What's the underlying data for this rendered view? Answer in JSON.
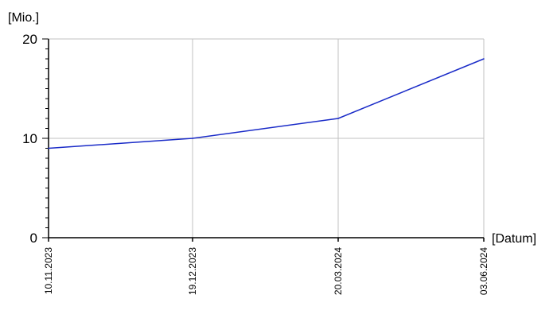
{
  "chart_data": {
    "type": "line",
    "xlabel": "[Datum]",
    "ylabel": "[Mio.]",
    "ylim": [
      0,
      20
    ],
    "y_ticks": [
      0,
      10,
      20
    ],
    "x_tick_labels": [
      "10.11.2023",
      "19.12.2023",
      "20.03.2024",
      "03.06.2024"
    ],
    "grid": true,
    "legend": "none",
    "series": [
      {
        "color": "#1a2bc8",
        "points": [
          {
            "x": "10.11.2023",
            "y": 9
          },
          {
            "x": "19.12.2023",
            "y": 10
          },
          {
            "x": "20.03.2024",
            "y": 12
          },
          {
            "x": "03.06.2024",
            "y": 18
          }
        ]
      }
    ]
  }
}
